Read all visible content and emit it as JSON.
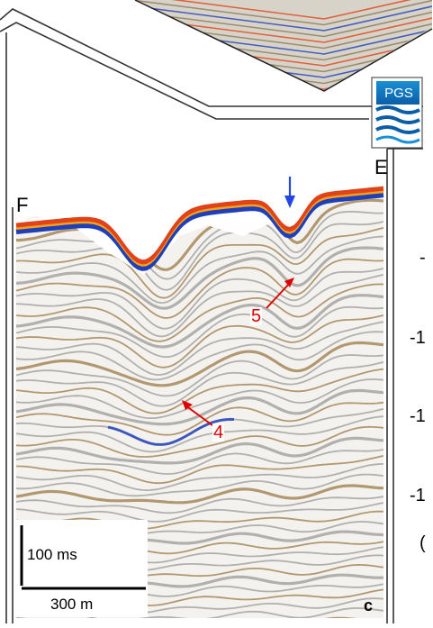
{
  "panel": {
    "label_left": "F",
    "label_right": "E",
    "panel_letter": "c",
    "annotations": [
      {
        "id": "5",
        "text": "5"
      },
      {
        "id": "4",
        "text": "4"
      }
    ],
    "scale_bar": {
      "time": "100 ms",
      "distance": "300 m"
    }
  },
  "logo": {
    "text": "PGS",
    "colors": {
      "top": "#1b8fd4",
      "bottom": "#0a5ea8",
      "waves": "#ffffff"
    }
  },
  "right_axis_fragments": [
    "-",
    "-1",
    "-1",
    "-1",
    "("
  ],
  "colors": {
    "peak_red": "#e0431a",
    "peak_orange": "#f2a21c",
    "trough_blue": "#1f3fb8",
    "seismic_gray": "#9a9a9a",
    "seismic_brown": "#9c7a45",
    "annotation_red": "#e00000",
    "arrow_blue": "#2346e8"
  }
}
